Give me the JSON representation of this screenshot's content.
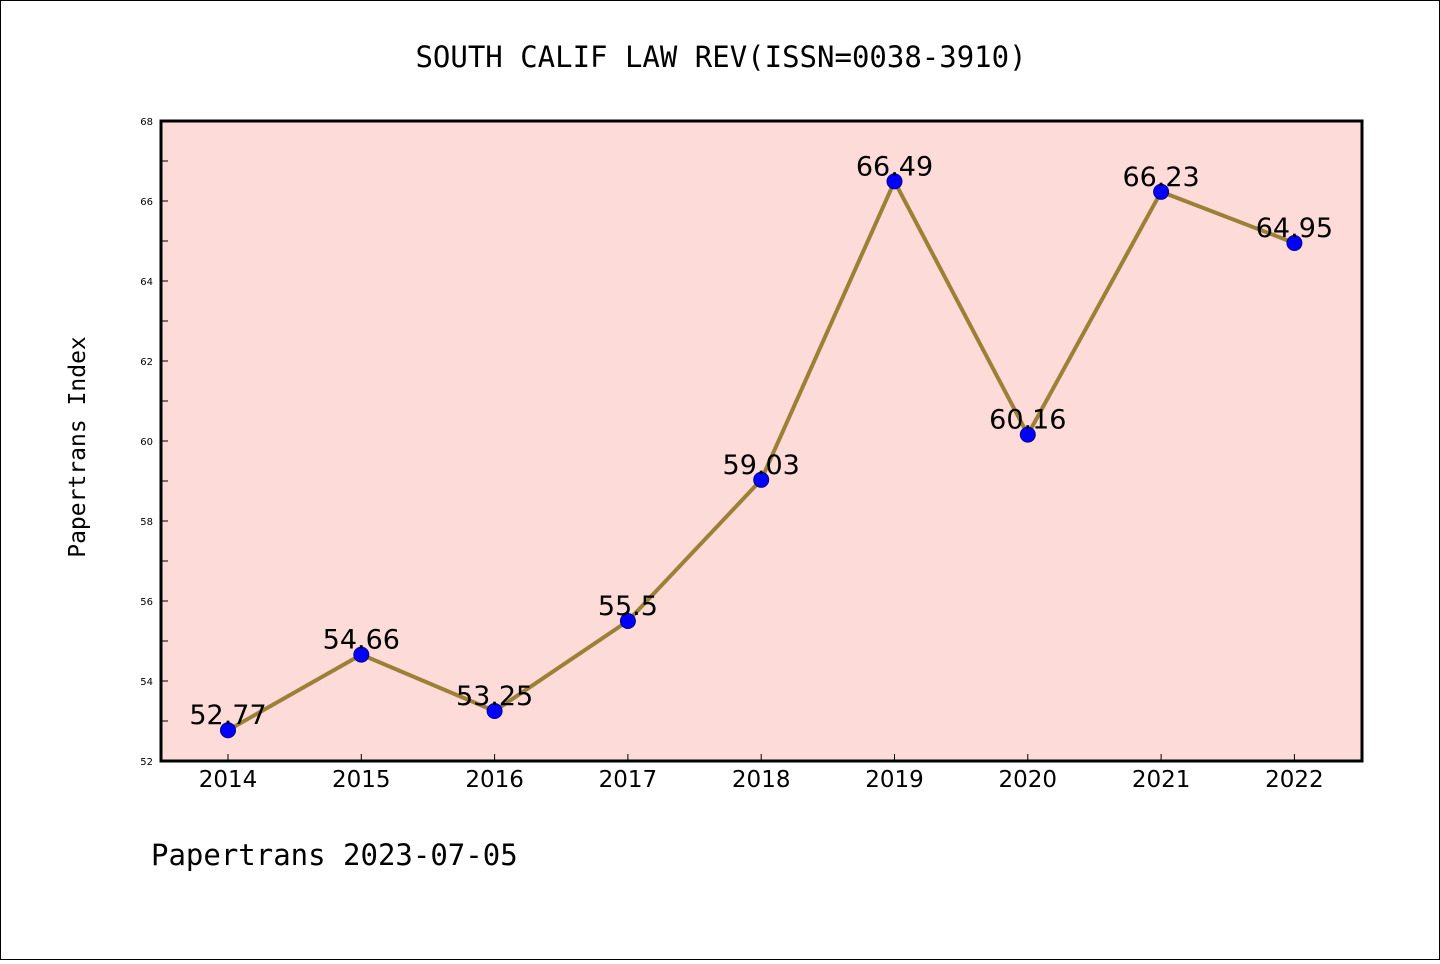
{
  "footer_text": "Papertrans 2023-07-05",
  "colors": {
    "plot_background": "#fddbd8",
    "line": "#9b8035",
    "marker": "#0000ff",
    "marker_edge": "#00008b"
  },
  "chart_data": {
    "type": "line",
    "title": "SOUTH CALIF LAW REV(ISSN=0038-3910)",
    "xlabel": "",
    "ylabel": "Papertrans Index",
    "categories": [
      "2014",
      "2015",
      "2016",
      "2017",
      "2018",
      "2019",
      "2020",
      "2021",
      "2022"
    ],
    "values": [
      52.77,
      54.66,
      53.25,
      55.5,
      59.03,
      66.49,
      60.16,
      66.23,
      64.95
    ],
    "data_labels": [
      "52.77",
      "54.66",
      "53.25",
      "55.5",
      "59.03",
      "66.49",
      "60.16",
      "66.23",
      "64.95"
    ],
    "ylim": [
      52,
      68
    ],
    "yticks": [
      "52",
      "54",
      "56",
      "58",
      "60",
      "62",
      "64",
      "66",
      "68"
    ],
    "grid": false,
    "legend": "none"
  }
}
